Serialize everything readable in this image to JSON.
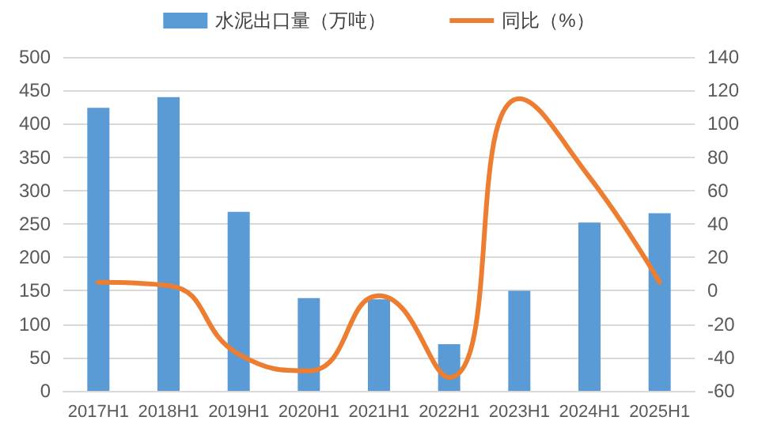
{
  "chart_data": {
    "type": "bar",
    "categories": [
      "2017H1",
      "2018H1",
      "2019H1",
      "2020H1",
      "2021H1",
      "2022H1",
      "2023H1",
      "2024H1",
      "2025H1"
    ],
    "series": [
      {
        "name": "水泥出口量（万吨）",
        "color": "#5b9bd5",
        "values": [
          424,
          440,
          268,
          139,
          137,
          70,
          150,
          252,
          266
        ]
      },
      {
        "name": "同比（%）",
        "type": "line",
        "axis": "y2",
        "color": "#ed7d31",
        "values": [
          5,
          3,
          -38,
          -48,
          -3,
          -52,
          115,
          68,
          5
        ]
      }
    ],
    "ylim": [
      0,
      500
    ],
    "yticks": [
      0,
      50,
      100,
      150,
      200,
      250,
      300,
      350,
      400,
      450,
      500
    ],
    "y2lim": [
      -60,
      140
    ],
    "y2ticks": [
      -60,
      -40,
      -20,
      0,
      20,
      40,
      60,
      80,
      100,
      120,
      140
    ],
    "grid": "y",
    "legend": "top",
    "marker": "none",
    "line_style": "solid"
  }
}
